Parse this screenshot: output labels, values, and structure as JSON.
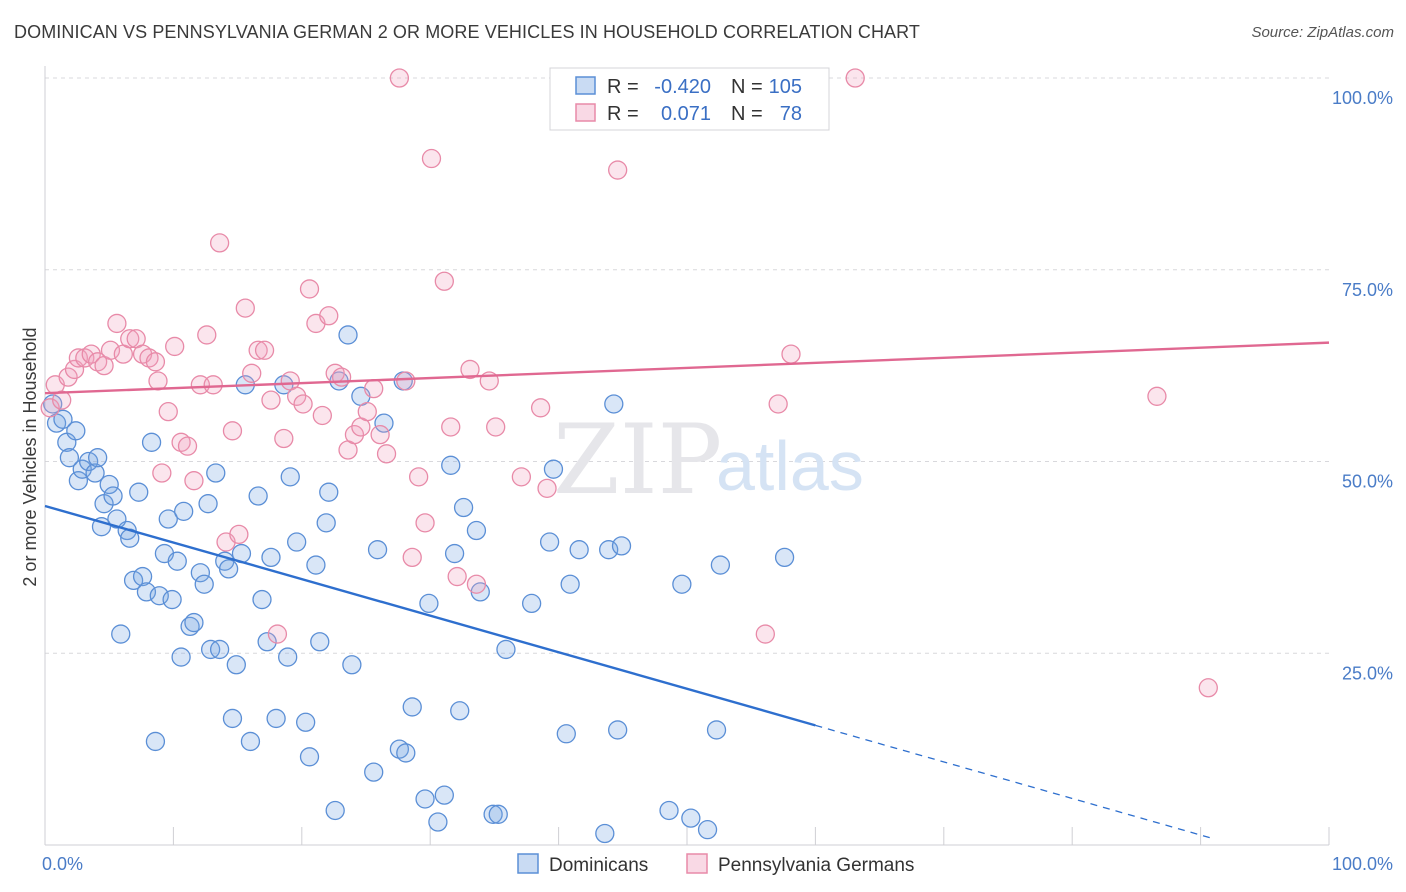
{
  "title": "DOMINICAN VS PENNSYLVANIA GERMAN 2 OR MORE VEHICLES IN HOUSEHOLD CORRELATION CHART",
  "source": "Source: ZipAtlas.com",
  "watermark": {
    "zip": "ZIP",
    "atlas": "atlas"
  },
  "colors": {
    "blue": "#5b8fd6",
    "blue_fill": "rgba(120,165,225,0.28)",
    "blue_line": "#2e6fce",
    "pink": "#e88aa8",
    "pink_fill": "rgba(240,160,190,0.28)",
    "pink_line": "#e06891",
    "grid": "#d8d8dc",
    "axis_text": "#4a7cc7"
  },
  "chart_data": {
    "type": "scatter",
    "title": "DOMINICAN VS PENNSYLVANIA GERMAN 2 OR MORE VEHICLES IN HOUSEHOLD CORRELATION CHART",
    "xlabel": "",
    "ylabel": "2 or more Vehicles in Household",
    "xlim": [
      0,
      100
    ],
    "ylim": [
      0,
      100
    ],
    "x_tick_labels": [
      "0.0%",
      "100.0%"
    ],
    "y_ticks": [
      25,
      50,
      75,
      100
    ],
    "y_tick_labels": [
      "25.0%",
      "50.0%",
      "75.0%",
      "100.0%"
    ],
    "grid": true,
    "legend_placement": "top-center",
    "legend": [
      {
        "r_label": "R =",
        "r_value": "-0.420",
        "n_label": "N =",
        "n_value": "105"
      },
      {
        "r_label": "R =",
        "r_value": "0.071",
        "n_label": "N =",
        "n_value": "78"
      }
    ],
    "series": [
      {
        "name": "Dominicans",
        "color": "#5b8fd6",
        "trend": {
          "x0": 0,
          "y0": 44.2,
          "x1": 60,
          "y1": 15.6,
          "dash_to_x": 91
        },
        "points": [
          [
            0.6,
            57.5
          ],
          [
            0.9,
            55
          ],
          [
            1.4,
            55.5
          ],
          [
            1.7,
            52.5
          ],
          [
            1.9,
            50.5
          ],
          [
            2.4,
            54
          ],
          [
            2.6,
            47.5
          ],
          [
            2.9,
            49
          ],
          [
            3.4,
            50
          ],
          [
            3.9,
            48.5
          ],
          [
            4.1,
            50.5
          ],
          [
            4.4,
            41.5
          ],
          [
            4.6,
            44.5
          ],
          [
            5,
            47
          ],
          [
            5.3,
            45.5
          ],
          [
            5.6,
            42.5
          ],
          [
            5.9,
            27.5
          ],
          [
            6.4,
            41
          ],
          [
            6.6,
            40
          ],
          [
            6.9,
            34.5
          ],
          [
            7.3,
            46
          ],
          [
            7.6,
            35
          ],
          [
            7.9,
            33
          ],
          [
            8.3,
            52.5
          ],
          [
            8.6,
            13.5
          ],
          [
            8.9,
            32.5
          ],
          [
            9.3,
            38
          ],
          [
            9.6,
            42.5
          ],
          [
            9.9,
            32
          ],
          [
            10.3,
            37
          ],
          [
            10.6,
            24.5
          ],
          [
            10.8,
            43.5
          ],
          [
            11.3,
            28.5
          ],
          [
            11.6,
            29
          ],
          [
            12.1,
            35.5
          ],
          [
            12.4,
            34
          ],
          [
            12.7,
            44.5
          ],
          [
            12.9,
            25.5
          ],
          [
            13.3,
            48.5
          ],
          [
            13.6,
            25.5
          ],
          [
            14,
            37
          ],
          [
            14.3,
            36
          ],
          [
            14.6,
            16.5
          ],
          [
            14.9,
            23.5
          ],
          [
            15.3,
            38
          ],
          [
            15.6,
            60
          ],
          [
            16,
            13.5
          ],
          [
            16.6,
            45.5
          ],
          [
            16.9,
            32
          ],
          [
            17.3,
            26.5
          ],
          [
            17.6,
            37.5
          ],
          [
            18,
            16.5
          ],
          [
            18.6,
            60
          ],
          [
            18.9,
            24.5
          ],
          [
            19.1,
            48
          ],
          [
            19.6,
            39.5
          ],
          [
            20.3,
            16
          ],
          [
            20.6,
            11.5
          ],
          [
            21.1,
            36.5
          ],
          [
            21.4,
            26.5
          ],
          [
            21.9,
            42
          ],
          [
            22.1,
            46
          ],
          [
            22.6,
            4.5
          ],
          [
            22.9,
            60.5
          ],
          [
            23.6,
            66.5
          ],
          [
            23.9,
            23.5
          ],
          [
            24.6,
            58.5
          ],
          [
            25.6,
            9.5
          ],
          [
            25.9,
            38.5
          ],
          [
            26.4,
            55
          ],
          [
            27.6,
            12.5
          ],
          [
            27.9,
            60.5
          ],
          [
            28.1,
            12
          ],
          [
            28.6,
            18
          ],
          [
            29.6,
            6
          ],
          [
            29.9,
            31.5
          ],
          [
            30.6,
            3
          ],
          [
            31.1,
            6.5
          ],
          [
            31.6,
            49.5
          ],
          [
            31.9,
            38
          ],
          [
            32.3,
            17.5
          ],
          [
            32.6,
            44
          ],
          [
            33.6,
            41
          ],
          [
            33.9,
            33
          ],
          [
            34.9,
            4
          ],
          [
            35.3,
            4
          ],
          [
            35.9,
            25.5
          ],
          [
            37.9,
            31.5
          ],
          [
            39.3,
            39.5
          ],
          [
            39.6,
            49
          ],
          [
            40.6,
            14.5
          ],
          [
            40.9,
            34
          ],
          [
            41.6,
            38.5
          ],
          [
            43.6,
            1.5
          ],
          [
            43.9,
            38.5
          ],
          [
            44.3,
            57.5
          ],
          [
            44.6,
            15
          ],
          [
            44.9,
            39
          ],
          [
            48.6,
            4.5
          ],
          [
            49.6,
            34
          ],
          [
            50.3,
            3.5
          ],
          [
            51.6,
            2
          ],
          [
            52.3,
            15
          ],
          [
            52.6,
            36.5
          ],
          [
            57.6,
            37.5
          ]
        ]
      },
      {
        "name": "Pennsylvania Germans",
        "color": "#e88aa8",
        "trend": {
          "x0": 0,
          "y0": 58.9,
          "x1": 100,
          "y1": 65.5,
          "dash_to_x": 100
        },
        "points": [
          [
            0.4,
            57
          ],
          [
            0.8,
            60
          ],
          [
            1.3,
            58
          ],
          [
            1.8,
            61
          ],
          [
            2.3,
            62
          ],
          [
            2.6,
            63.5
          ],
          [
            3.1,
            63.5
          ],
          [
            3.6,
            64
          ],
          [
            4.1,
            63
          ],
          [
            4.6,
            62.5
          ],
          [
            5.1,
            64.5
          ],
          [
            5.6,
            68
          ],
          [
            6.1,
            64
          ],
          [
            6.6,
            66
          ],
          [
            7.1,
            66
          ],
          [
            7.6,
            64
          ],
          [
            8.1,
            63.5
          ],
          [
            8.6,
            63
          ],
          [
            8.8,
            60.5
          ],
          [
            9.1,
            48.5
          ],
          [
            9.6,
            56.5
          ],
          [
            10.1,
            65
          ],
          [
            10.6,
            52.5
          ],
          [
            11.1,
            52
          ],
          [
            11.6,
            47.5
          ],
          [
            12.1,
            60
          ],
          [
            12.6,
            66.5
          ],
          [
            13.1,
            60
          ],
          [
            13.6,
            78.5
          ],
          [
            14.1,
            39.5
          ],
          [
            14.6,
            54
          ],
          [
            15.1,
            40.5
          ],
          [
            15.6,
            70
          ],
          [
            16.1,
            61.5
          ],
          [
            16.6,
            64.5
          ],
          [
            17.1,
            64.5
          ],
          [
            17.6,
            58
          ],
          [
            18.1,
            27.5
          ],
          [
            18.6,
            53
          ],
          [
            19.1,
            60.5
          ],
          [
            19.6,
            58.5
          ],
          [
            20.1,
            57.5
          ],
          [
            20.6,
            72.5
          ],
          [
            21.1,
            68
          ],
          [
            21.6,
            56
          ],
          [
            22.1,
            69
          ],
          [
            22.6,
            61.5
          ],
          [
            23.1,
            61
          ],
          [
            23.6,
            51.5
          ],
          [
            24.1,
            53.5
          ],
          [
            24.6,
            54.5
          ],
          [
            25.1,
            56.5
          ],
          [
            25.6,
            59.5
          ],
          [
            26.1,
            53.5
          ],
          [
            26.6,
            51
          ],
          [
            27.6,
            100
          ],
          [
            28.1,
            60.5
          ],
          [
            28.6,
            37.5
          ],
          [
            29.1,
            48
          ],
          [
            29.6,
            42
          ],
          [
            30.1,
            89.5
          ],
          [
            31.1,
            73.5
          ],
          [
            31.6,
            54.5
          ],
          [
            32.1,
            35
          ],
          [
            33.1,
            62
          ],
          [
            33.6,
            34
          ],
          [
            34.6,
            60.5
          ],
          [
            35.1,
            54.5
          ],
          [
            37.1,
            48
          ],
          [
            38.6,
            57
          ],
          [
            39.1,
            46.5
          ],
          [
            42.1,
            100
          ],
          [
            44.6,
            88
          ],
          [
            56.1,
            27.5
          ],
          [
            57.1,
            57.5
          ],
          [
            58.1,
            64
          ],
          [
            63.1,
            100
          ],
          [
            86.6,
            58.5
          ],
          [
            90.6,
            20.5
          ]
        ]
      }
    ]
  },
  "bottom_legend": [
    "Dominicans",
    "Pennsylvania Germans"
  ]
}
